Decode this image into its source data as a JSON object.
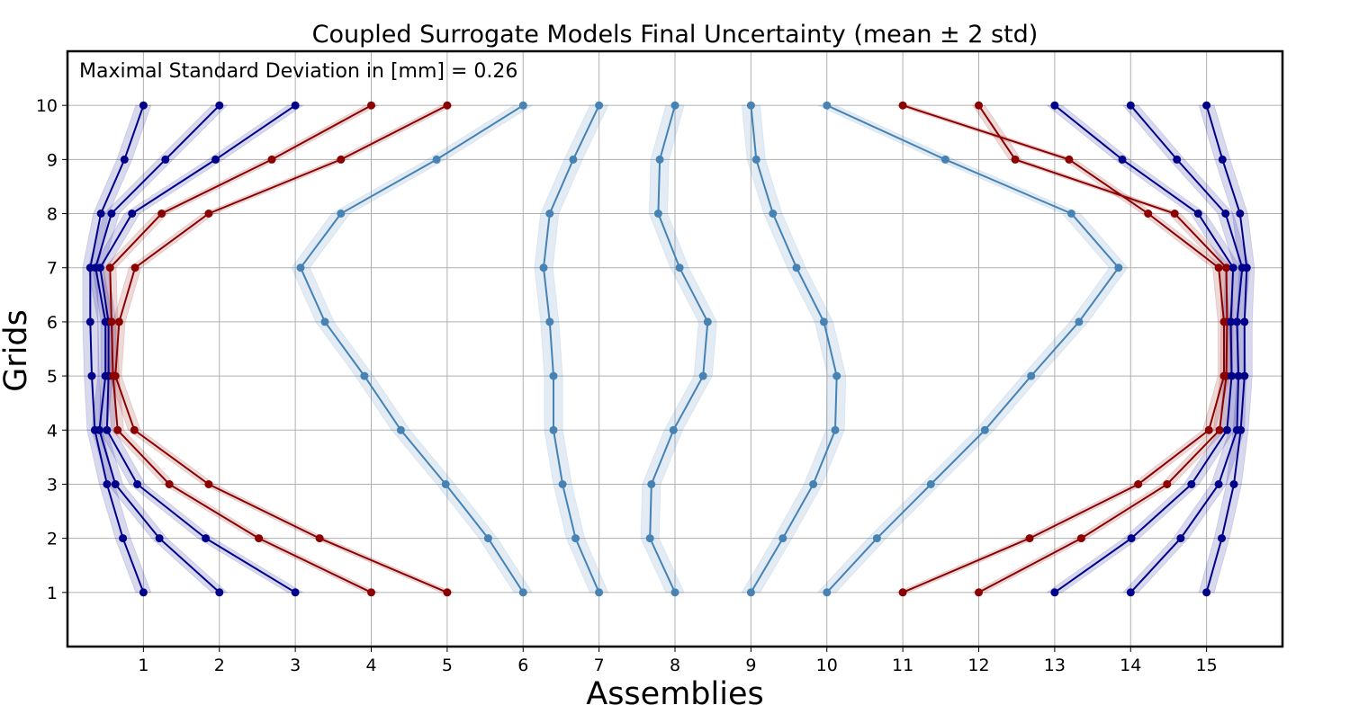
{
  "chart_data": {
    "type": "line",
    "title": "Coupled Surrogate Models Final Uncertainty  (mean ± 2 std)",
    "xlabel": "Assemblies",
    "ylabel": "Grids",
    "annotation": "Maximal Standard Deviation in [mm] = 0.26",
    "xlim": [
      0,
      16
    ],
    "ylim": [
      0,
      11
    ],
    "xticks": [
      1,
      2,
      3,
      4,
      5,
      6,
      7,
      8,
      9,
      10,
      11,
      12,
      13,
      14,
      15
    ],
    "yticks": [
      1,
      2,
      3,
      4,
      5,
      6,
      7,
      8,
      9,
      10
    ],
    "grid": true,
    "legend": "none",
    "colors": {
      "navy": "#00008b",
      "darkred": "#8b0000",
      "steelblue": "#4682b4"
    },
    "y": [
      1,
      2,
      3,
      4,
      5,
      6,
      7,
      8,
      9,
      10
    ],
    "series": [
      {
        "color": "navy",
        "std": 0.05,
        "x": [
          1.0,
          0.73,
          0.52,
          0.36,
          0.32,
          0.3,
          0.3,
          0.44,
          0.75,
          1.0
        ]
      },
      {
        "color": "navy",
        "std": 0.05,
        "x": [
          2.0,
          1.21,
          0.63,
          0.42,
          0.5,
          0.5,
          0.37,
          0.58,
          1.29,
          2.0
        ]
      },
      {
        "color": "navy",
        "std": 0.05,
        "x": [
          3.0,
          1.82,
          0.92,
          0.52,
          0.54,
          0.54,
          0.43,
          0.85,
          1.95,
          3.0
        ]
      },
      {
        "color": "darkred",
        "std": 0.04,
        "x": [
          4.0,
          2.52,
          1.34,
          0.66,
          0.6,
          0.58,
          0.56,
          1.24,
          2.69,
          4.0
        ]
      },
      {
        "color": "darkred",
        "std": 0.04,
        "x": [
          5.0,
          3.32,
          1.86,
          0.88,
          0.63,
          0.68,
          0.89,
          1.86,
          3.6,
          5.0
        ]
      },
      {
        "color": "steelblue",
        "std": 0.06,
        "x": [
          6.0,
          5.54,
          4.98,
          4.39,
          3.91,
          3.39,
          3.07,
          3.6,
          4.86,
          6.0
        ]
      },
      {
        "color": "steelblue",
        "std": 0.06,
        "x": [
          7.0,
          6.69,
          6.52,
          6.4,
          6.4,
          6.35,
          6.27,
          6.35,
          6.66,
          7.0
        ]
      },
      {
        "color": "steelblue",
        "std": 0.06,
        "x": [
          8.0,
          7.67,
          7.69,
          7.98,
          8.37,
          8.43,
          8.06,
          7.78,
          7.8,
          8.0
        ]
      },
      {
        "color": "steelblue",
        "std": 0.06,
        "x": [
          9.0,
          9.42,
          9.82,
          10.11,
          10.13,
          9.96,
          9.6,
          9.29,
          9.07,
          9.0
        ]
      },
      {
        "color": "steelblue",
        "std": 0.06,
        "x": [
          10.0,
          10.66,
          11.37,
          12.08,
          12.69,
          13.32,
          13.84,
          13.22,
          11.56,
          10.0
        ]
      },
      {
        "color": "darkred",
        "std": 0.04,
        "x": [
          11.0,
          12.67,
          14.1,
          15.03,
          15.23,
          15.23,
          15.16,
          14.23,
          13.19,
          11.0
        ]
      },
      {
        "color": "darkred",
        "std": 0.04,
        "x": [
          12.0,
          13.35,
          14.48,
          15.17,
          15.26,
          15.27,
          15.26,
          14.58,
          12.48,
          12.0
        ]
      },
      {
        "color": "navy",
        "std": 0.05,
        "x": [
          13.0,
          14.01,
          14.8,
          15.27,
          15.33,
          15.32,
          15.35,
          14.89,
          13.89,
          13.0
        ]
      },
      {
        "color": "navy",
        "std": 0.05,
        "x": [
          14.0,
          14.66,
          15.16,
          15.4,
          15.42,
          15.4,
          15.47,
          15.25,
          14.61,
          14.0
        ]
      },
      {
        "color": "navy",
        "std": 0.05,
        "x": [
          15.0,
          15.2,
          15.36,
          15.45,
          15.5,
          15.5,
          15.53,
          15.44,
          15.21,
          15.0
        ]
      }
    ]
  }
}
